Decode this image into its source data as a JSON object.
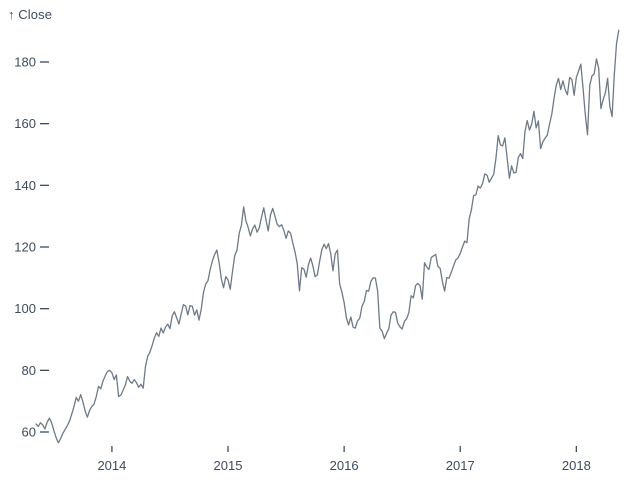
{
  "chart_data": {
    "type": "line",
    "title_label": "↑ Close",
    "ylabel": "Close",
    "xlabel": "",
    "grid": false,
    "legend": "none",
    "line_color": "#6e7a87",
    "axis_text_color": "#3f4b5c",
    "background_color": "#ffffff",
    "x_unit": "decimal_year",
    "x_domain": [
      2013.3462,
      2018.3846
    ],
    "y_domain": [
      60,
      180
    ],
    "y_extent": [
      56.5,
      190.3
    ],
    "x_ticks": [
      2014,
      2015,
      2016,
      2017,
      2018
    ],
    "y_ticks": [
      60,
      80,
      100,
      120,
      140,
      160,
      180
    ],
    "x_start_year": 2013.3462,
    "x_step_years": 0.0192308,
    "series": [
      {
        "name": "Close",
        "values": [
          62.6,
          61.8,
          63.0,
          62.3,
          61.0,
          63.2,
          64.5,
          63.0,
          60.5,
          58.2,
          56.5,
          57.8,
          59.5,
          60.8,
          62.0,
          63.5,
          65.8,
          68.2,
          71.2,
          70.0,
          72.1,
          69.8,
          66.8,
          64.8,
          67.0,
          68.3,
          69.0,
          71.5,
          74.8,
          74.0,
          76.5,
          78.2,
          79.6,
          80.0,
          79.2,
          77.0,
          78.5,
          71.5,
          72.0,
          73.5,
          75.2,
          78.0,
          76.5,
          75.8,
          77.0,
          76.0,
          74.5,
          75.5,
          74.2,
          81.1,
          84.5,
          85.9,
          88.0,
          90.5,
          92.2,
          91.0,
          93.7,
          92.1,
          94.0,
          95.0,
          93.5,
          97.7,
          99.0,
          97.0,
          95.0,
          98.2,
          101.3,
          100.9,
          98.0,
          101.0,
          100.8,
          97.9,
          99.6,
          96.3,
          99.8,
          105.2,
          108.0,
          109.0,
          112.7,
          115.5,
          117.6,
          119.0,
          115.0,
          109.7,
          106.8,
          110.4,
          109.3,
          106.3,
          112.0,
          117.2,
          118.9,
          124.4,
          127.1,
          133.0,
          128.5,
          126.4,
          123.6,
          125.9,
          127.1,
          124.8,
          126.2,
          129.7,
          132.7,
          128.8,
          125.2,
          130.3,
          132.5,
          130.1,
          127.4,
          126.6,
          127.2,
          125.4,
          122.8,
          125.2,
          124.5,
          121.3,
          118.4,
          114.6,
          105.8,
          113.3,
          112.8,
          110.2,
          114.2,
          116.4,
          113.9,
          110.4,
          111.0,
          115.2,
          119.1,
          120.9,
          119.5,
          121.1,
          117.8,
          112.3,
          117.8,
          119.0,
          108.0,
          105.3,
          102.0,
          97.1,
          94.7,
          97.3,
          94.0,
          93.7,
          96.0,
          96.9,
          100.8,
          102.3,
          105.9,
          105.7,
          108.9,
          110.0,
          109.9,
          105.7,
          93.7,
          92.7,
          90.3,
          92.0,
          93.5,
          97.9,
          99.0,
          98.8,
          95.3,
          94.1,
          93.4,
          95.9,
          96.7,
          98.8,
          104.2,
          103.5,
          107.5,
          108.2,
          107.4,
          103.1,
          114.9,
          113.5,
          112.7,
          116.6,
          117.1,
          117.6,
          113.7,
          113.1,
          108.8,
          105.7,
          110.1,
          109.9,
          111.8,
          113.9,
          115.8,
          116.5,
          117.9,
          120.0,
          121.9,
          121.4,
          129.1,
          132.1,
          136.7,
          136.9,
          139.8,
          139.1,
          140.6,
          143.7,
          143.3,
          141.0,
          142.3,
          143.6,
          148.9,
          156.1,
          153.1,
          152.8,
          155.4,
          148.9,
          142.3,
          146.3,
          144.0,
          144.2,
          149.0,
          150.3,
          148.7,
          157.5,
          161.0,
          157.9,
          159.9,
          164.0,
          158.6,
          160.9,
          151.9,
          154.1,
          155.3,
          156.3,
          159.9,
          163.1,
          168.1,
          172.5,
          174.7,
          171.1,
          173.9,
          171.0,
          169.4,
          175.0,
          174.3,
          169.2,
          175.0,
          177.1,
          179.3,
          171.5,
          163.0,
          156.4,
          172.4,
          175.5,
          176.2,
          181.0,
          178.0,
          164.9,
          167.8,
          170.0,
          174.7,
          165.7,
          162.3,
          176.0,
          186.0,
          190.3
        ]
      }
    ]
  }
}
